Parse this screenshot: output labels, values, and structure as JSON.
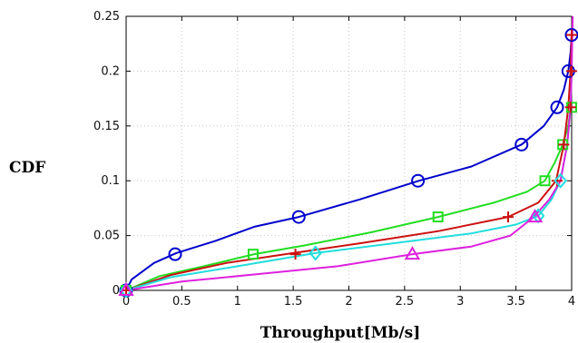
{
  "chart_data": {
    "type": "line",
    "xlabel": "Throughput[Mb/s]",
    "ylabel": "CDF",
    "xlim": [
      0,
      4
    ],
    "ylim": [
      0,
      0.25
    ],
    "x_ticks": [
      "0",
      "0.5",
      "1",
      "1.5",
      "2",
      "2.5",
      "3",
      "3.5",
      "4"
    ],
    "y_ticks": [
      "0",
      "0.05",
      "0.1",
      "0.15",
      "0.2",
      "0.25"
    ],
    "grid": "dotted",
    "legend": "none",
    "series": [
      {
        "color": "#0000cc",
        "marker": "circle",
        "points": [
          [
            0.0,
            0.0
          ],
          [
            0.05,
            0.01
          ],
          [
            0.25,
            0.025
          ],
          [
            0.45,
            0.034
          ],
          [
            0.8,
            0.045
          ],
          [
            1.15,
            0.058
          ],
          [
            1.55,
            0.067
          ],
          [
            2.1,
            0.083
          ],
          [
            2.63,
            0.1
          ],
          [
            3.1,
            0.113
          ],
          [
            3.55,
            0.133
          ],
          [
            3.75,
            0.15
          ],
          [
            3.87,
            0.167
          ],
          [
            3.93,
            0.183
          ],
          [
            3.97,
            0.2
          ],
          [
            3.99,
            0.217
          ],
          [
            4.0,
            0.233
          ]
        ],
        "marker_points": [
          [
            0.0,
            0.0
          ],
          [
            0.44,
            0.033
          ],
          [
            1.55,
            0.067
          ],
          [
            2.62,
            0.1
          ],
          [
            3.55,
            0.133
          ],
          [
            3.87,
            0.167
          ],
          [
            3.97,
            0.2
          ],
          [
            4.0,
            0.233
          ]
        ]
      },
      {
        "color": "#22dd22",
        "marker": "square",
        "points": [
          [
            0.0,
            0.0
          ],
          [
            0.3,
            0.013
          ],
          [
            0.7,
            0.022
          ],
          [
            1.15,
            0.033
          ],
          [
            1.6,
            0.041
          ],
          [
            2.2,
            0.053
          ],
          [
            2.8,
            0.067
          ],
          [
            3.3,
            0.08
          ],
          [
            3.6,
            0.09
          ],
          [
            3.76,
            0.1
          ],
          [
            3.85,
            0.117
          ],
          [
            3.92,
            0.133
          ],
          [
            3.97,
            0.15
          ],
          [
            3.99,
            0.167
          ]
        ],
        "marker_points": [
          [
            0.0,
            0.0
          ],
          [
            1.14,
            0.033
          ],
          [
            2.8,
            0.067
          ],
          [
            3.76,
            0.1
          ],
          [
            3.92,
            0.133
          ],
          [
            4.0,
            0.167
          ]
        ]
      },
      {
        "color": "#cc1111",
        "marker": "plus",
        "points": [
          [
            0.0,
            0.0
          ],
          [
            0.4,
            0.014
          ],
          [
            0.9,
            0.025
          ],
          [
            1.5,
            0.034
          ],
          [
            2.1,
            0.043
          ],
          [
            2.8,
            0.054
          ],
          [
            3.43,
            0.067
          ],
          [
            3.7,
            0.08
          ],
          [
            3.86,
            0.1
          ],
          [
            3.93,
            0.133
          ],
          [
            3.97,
            0.167
          ],
          [
            3.99,
            0.2
          ],
          [
            4.0,
            0.233
          ]
        ],
        "marker_points": [
          [
            0.0,
            0.0
          ],
          [
            1.52,
            0.033
          ],
          [
            3.43,
            0.067
          ],
          [
            3.87,
            0.1
          ],
          [
            3.93,
            0.133
          ],
          [
            3.99,
            0.167
          ],
          [
            4.0,
            0.2
          ],
          [
            4.0,
            0.233
          ]
        ]
      },
      {
        "color": "#22dddd",
        "marker": "diamond",
        "points": [
          [
            0.0,
            0.0
          ],
          [
            0.4,
            0.012
          ],
          [
            1.0,
            0.022
          ],
          [
            1.7,
            0.034
          ],
          [
            2.4,
            0.043
          ],
          [
            3.1,
            0.052
          ],
          [
            3.5,
            0.06
          ],
          [
            3.7,
            0.068
          ],
          [
            3.82,
            0.083
          ],
          [
            3.9,
            0.1
          ],
          [
            3.96,
            0.133
          ],
          [
            3.99,
            0.167
          ],
          [
            4.0,
            0.2
          ]
        ],
        "marker_points": [
          [
            0.0,
            0.0
          ],
          [
            1.7,
            0.034
          ],
          [
            3.7,
            0.068
          ],
          [
            3.9,
            0.1
          ]
        ]
      },
      {
        "color": "#dd22dd",
        "marker": "triangle",
        "points": [
          [
            0.0,
            0.0
          ],
          [
            0.5,
            0.008
          ],
          [
            1.2,
            0.015
          ],
          [
            1.9,
            0.022
          ],
          [
            2.57,
            0.033
          ],
          [
            3.1,
            0.04
          ],
          [
            3.45,
            0.05
          ],
          [
            3.66,
            0.067
          ],
          [
            3.8,
            0.083
          ],
          [
            3.9,
            0.1
          ],
          [
            3.96,
            0.133
          ],
          [
            3.99,
            0.167
          ],
          [
            4.0,
            0.2
          ],
          [
            4.01,
            0.25
          ]
        ],
        "marker_points": [
          [
            0.0,
            0.0
          ],
          [
            2.57,
            0.033
          ],
          [
            3.67,
            0.067
          ]
        ]
      }
    ]
  }
}
